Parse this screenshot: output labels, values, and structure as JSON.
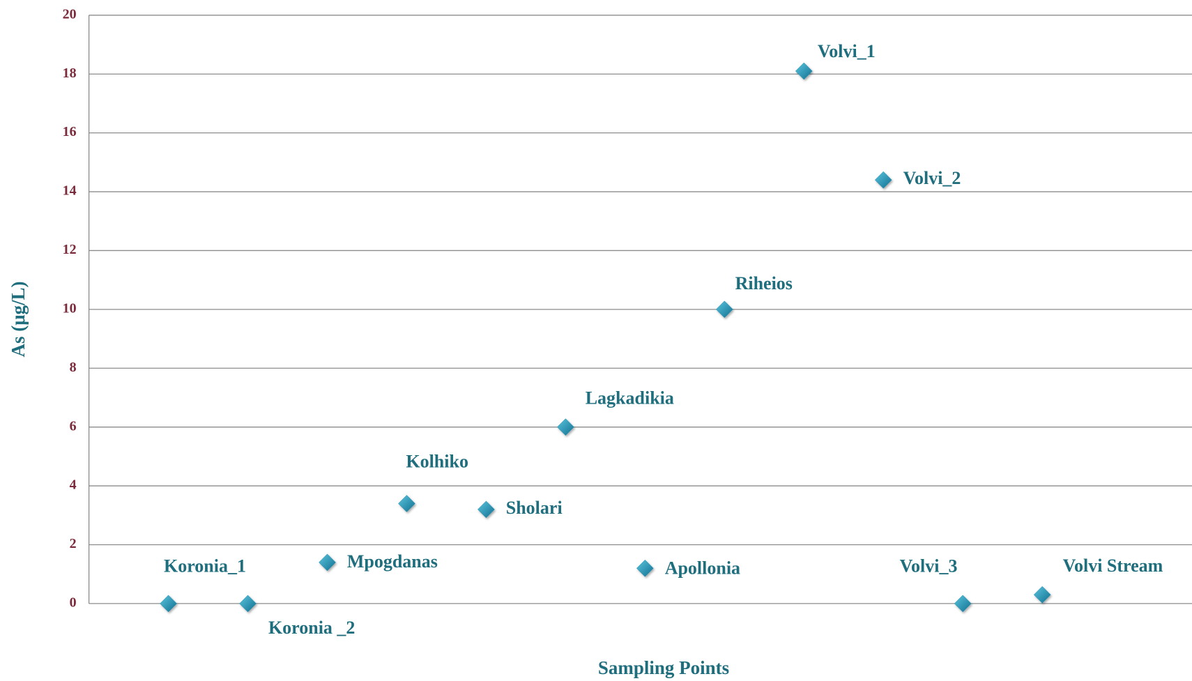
{
  "chart_data": {
    "type": "scatter",
    "x_label": "Sampling Points",
    "y_label": "As (μg/L)",
    "categories": [
      "Koronia_1",
      "Koronia _2",
      "Mpogdanas",
      "Kolhiko",
      "Sholari",
      "Lagkadikia",
      "Apollonia",
      "Riheios",
      "Volvi_1",
      "Volvi_2",
      "Volvi_3",
      "Volvi Stream"
    ],
    "values": [
      0,
      0,
      1.4,
      3.4,
      3.2,
      6.0,
      1.2,
      10.0,
      18.1,
      14.4,
      0,
      0.3
    ],
    "color": "#1a8db0",
    "ylim": [
      0,
      20
    ],
    "yticks": [
      0,
      2,
      4,
      6,
      8,
      10,
      12,
      14,
      16,
      18,
      20
    ],
    "grid": true
  }
}
